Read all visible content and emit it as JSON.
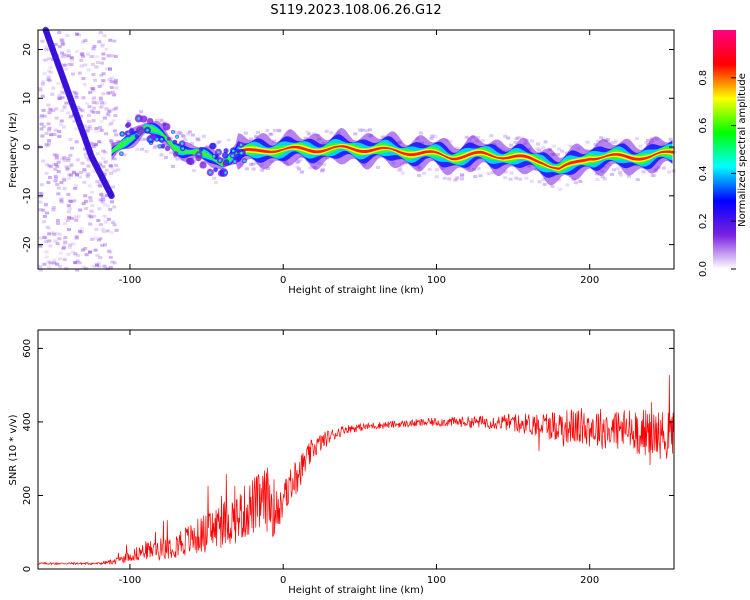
{
  "title": "S119.2023.108.06.26.G12",
  "chart_data": [
    {
      "type": "heatmap",
      "xlabel": "Height of straight line (km)",
      "ylabel": "Frequency (Hz)",
      "xlim": [
        -160,
        255
      ],
      "ylim": [
        -25,
        24
      ],
      "x_ticks": [
        -100,
        0,
        100,
        200
      ],
      "y_ticks": [
        20,
        10,
        0,
        -10,
        -20
      ],
      "colorbar": {
        "label": "Normalized spectral amplitude",
        "range": [
          0,
          1
        ],
        "ticks": [
          0.0,
          0.2,
          0.4,
          0.6,
          0.8
        ],
        "colormap": [
          "#ffffff",
          "#7b1fe0",
          "#0000ff",
          "#00ffff",
          "#00ff00",
          "#ffff00",
          "#ff0000",
          "#ff0080"
        ]
      },
      "ridge": {
        "x": [
          -112,
          -100,
          -90,
          -80,
          -70,
          -60,
          -50,
          -40,
          -30,
          -20,
          -10,
          0,
          20,
          40,
          60,
          80,
          100,
          110,
          130,
          150,
          170,
          180,
          190,
          200,
          220,
          240,
          255
        ],
        "y": [
          -1.5,
          2,
          4,
          2.5,
          0,
          -1,
          -2,
          -3,
          -1,
          -1,
          -0.5,
          -0.5,
          -0.5,
          -0.3,
          -0.5,
          -1,
          -1.5,
          -2,
          -1.5,
          -2,
          -3,
          -4.5,
          -3.5,
          -2,
          -2,
          -2,
          -1
        ]
      },
      "diagonal_track": {
        "x": [
          -155,
          -125,
          -112
        ],
        "y": [
          24,
          -2,
          -10
        ]
      }
    },
    {
      "type": "line",
      "xlabel": "Height of straight line (km)",
      "ylabel": "SNR (10 * v/v)",
      "xlim": [
        -160,
        255
      ],
      "ylim": [
        0,
        650
      ],
      "x_ticks": [
        -100,
        0,
        100,
        200
      ],
      "y_ticks": [
        0,
        200,
        400,
        600
      ],
      "color": "#ff0000",
      "envelope": {
        "x": [
          -160,
          -120,
          -110,
          -100,
          -90,
          -80,
          -70,
          -60,
          -50,
          -40,
          -30,
          -20,
          -10,
          -5,
          0,
          10,
          20,
          30,
          40,
          60,
          80,
          100,
          120,
          140,
          160,
          180,
          200,
          220,
          240,
          255
        ],
        "y": [
          15,
          15,
          20,
          35,
          50,
          55,
          70,
          80,
          100,
          120,
          140,
          170,
          190,
          160,
          190,
          260,
          330,
          360,
          380,
          390,
          395,
          400,
          400,
          400,
          395,
          390,
          385,
          380,
          370,
          360
        ],
        "noise": [
          3,
          3,
          8,
          15,
          25,
          30,
          40,
          45,
          55,
          65,
          70,
          80,
          90,
          80,
          60,
          45,
          30,
          20,
          12,
          10,
          10,
          12,
          15,
          20,
          30,
          45,
          55,
          60,
          65,
          70
        ]
      }
    }
  ]
}
